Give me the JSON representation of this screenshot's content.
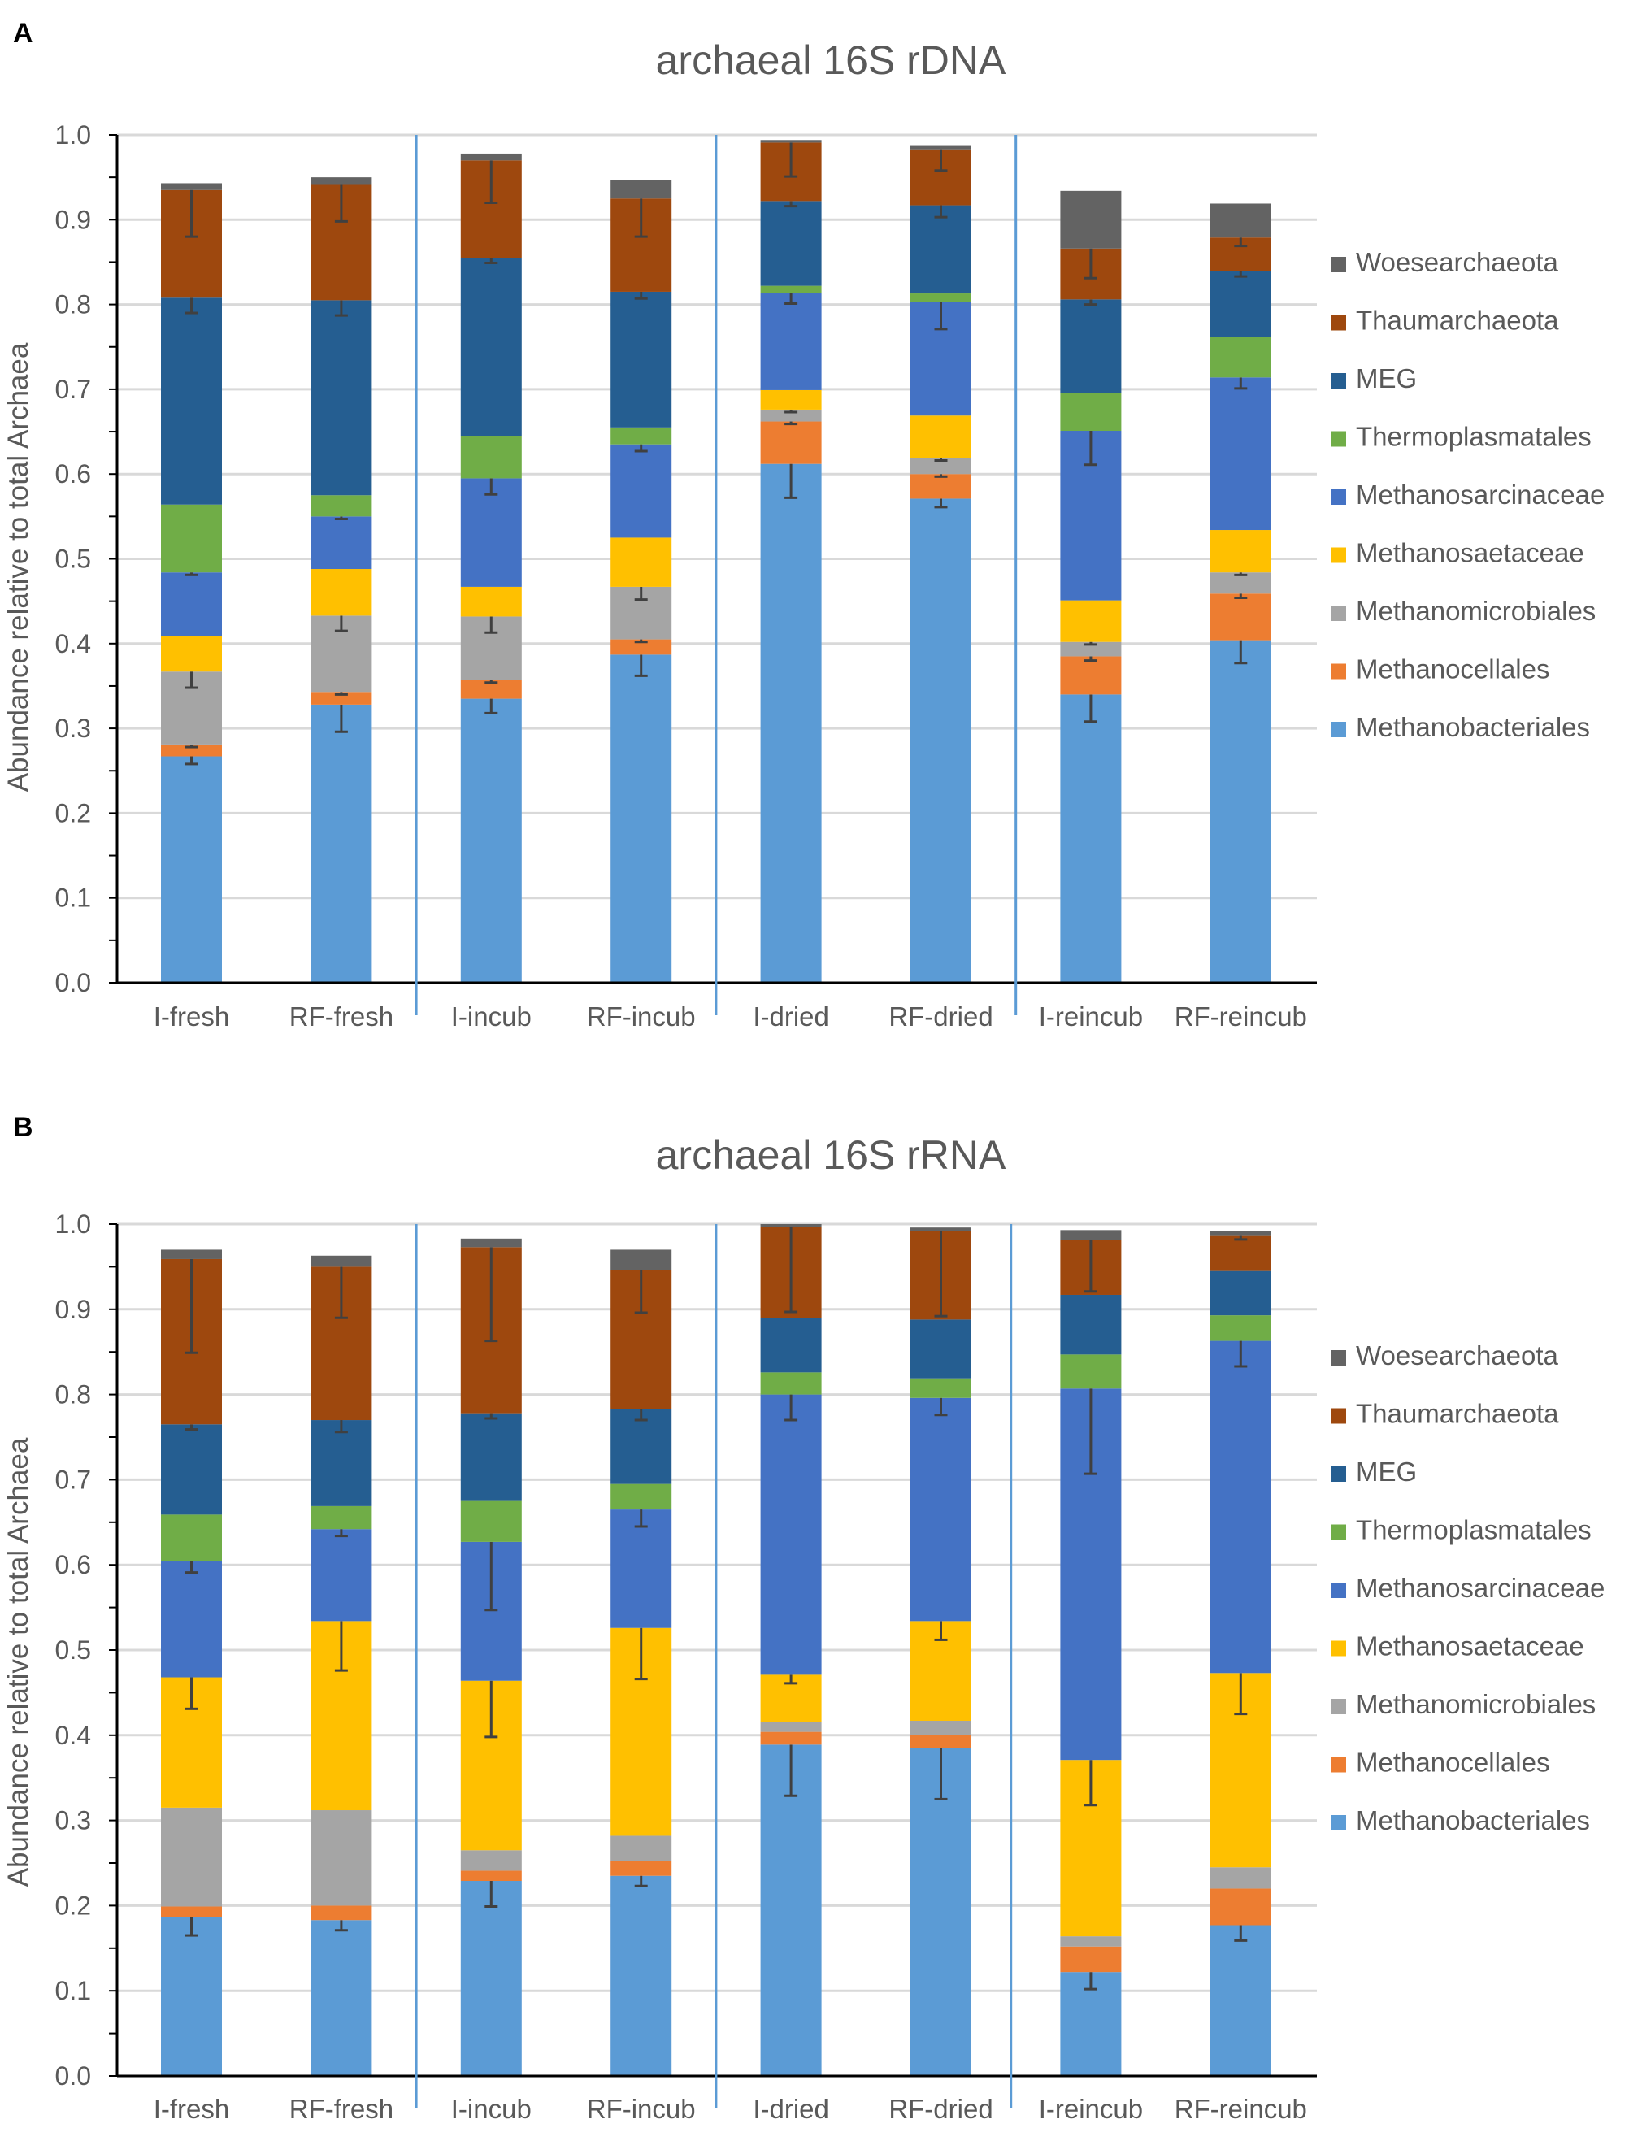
{
  "legend": [
    "Woesearchaeota",
    "Thaumarchaeota",
    "MEG",
    "Thermoplasmatales",
    "Methanosarcinaceae",
    "Methanosaetaceae",
    "Methanomicrobiales",
    "Methanocellales",
    "Methanobacteriales"
  ],
  "colors": {
    "Methanobacteriales": "#5B9BD5",
    "Methanocellales": "#ED7D31",
    "Methanomicrobiales": "#A5A5A5",
    "Methanosaetaceae": "#FFC000",
    "Methanosarcinaceae": "#4472C4",
    "Thermoplasmatales": "#70AD47",
    "MEG": "#255E91",
    "Thaumarchaeota": "#9E480E",
    "Woesearchaeota": "#636363"
  },
  "chart_data": [
    {
      "panel_label": "A",
      "type": "bar",
      "stacked": true,
      "title": "archaeal 16S rDNA",
      "xlabel": "",
      "ylabel": "Abundance relative to total Archaea",
      "ylim": [
        0,
        1.0
      ],
      "yticks": [
        "0.0",
        "0.1",
        "0.2",
        "0.3",
        "0.4",
        "0.5",
        "0.6",
        "0.7",
        "0.8",
        "0.9",
        "1.0"
      ],
      "categories": [
        "I-fresh",
        "RF-fresh",
        "I-incub",
        "RF-incub",
        "I-dried",
        "RF-dried",
        "I-reincub",
        "RF-reincub"
      ],
      "group_separators_after": [
        1,
        3,
        5
      ],
      "series": [
        {
          "name": "Methanobacteriales",
          "values": [
            0.267,
            0.328,
            0.335,
            0.387,
            0.612,
            0.571,
            0.34,
            0.404
          ],
          "err": [
            0.009,
            0.032,
            0.017,
            0.025,
            0.04,
            0.01,
            0.032,
            0.027
          ]
        },
        {
          "name": "Methanocellales",
          "values": [
            0.014,
            0.015,
            0.022,
            0.018,
            0.05,
            0.029,
            0.045,
            0.055
          ],
          "err": [
            0.003,
            0.003,
            0.003,
            0.003,
            0.003,
            0.003,
            0.005,
            0.005
          ]
        },
        {
          "name": "Methanomicrobiales",
          "values": [
            0.086,
            0.09,
            0.075,
            0.062,
            0.014,
            0.019,
            0.017,
            0.025
          ],
          "err": [
            0.019,
            0.018,
            0.019,
            0.015,
            0.003,
            0.003,
            0.003,
            0.003
          ]
        },
        {
          "name": "Methanosaetaceae",
          "values": [
            0.042,
            0.055,
            0.035,
            0.058,
            0.023,
            0.05,
            0.049,
            0.05
          ],
          "err": [
            0,
            0,
            0,
            0,
            0,
            0,
            0,
            0
          ]
        },
        {
          "name": "Methanosarcinaceae",
          "values": [
            0.075,
            0.062,
            0.128,
            0.11,
            0.115,
            0.134,
            0.2,
            0.18
          ],
          "err": [
            0.003,
            0.003,
            0.019,
            0.008,
            0.013,
            0.032,
            0.04,
            0.013
          ]
        },
        {
          "name": "Thermoplasmatales",
          "values": [
            0.08,
            0.025,
            0.05,
            0.02,
            0.008,
            0.01,
            0.045,
            0.048
          ],
          "err": [
            0,
            0,
            0,
            0,
            0,
            0,
            0,
            0
          ]
        },
        {
          "name": "MEG",
          "values": [
            0.244,
            0.23,
            0.21,
            0.16,
            0.1,
            0.104,
            0.11,
            0.077
          ],
          "err": [
            0.018,
            0.018,
            0.006,
            0.008,
            0.006,
            0.014,
            0.006,
            0.006
          ]
        },
        {
          "name": "Thaumarchaeota",
          "values": [
            0.127,
            0.137,
            0.115,
            0.11,
            0.069,
            0.066,
            0.06,
            0.04
          ],
          "err": [
            0.055,
            0.044,
            0.05,
            0.045,
            0.04,
            0.025,
            0.035,
            0.01
          ]
        },
        {
          "name": "Woesearchaeota",
          "values": [
            0.008,
            0.008,
            0.008,
            0.022,
            0.003,
            0.004,
            0.068,
            0.04
          ],
          "err": [
            0,
            0,
            0,
            0,
            0,
            0,
            0,
            0
          ]
        }
      ]
    },
    {
      "panel_label": "B",
      "type": "bar",
      "stacked": true,
      "title": "archaeal 16S rRNA",
      "xlabel": "",
      "ylabel": "Abundance relative to total Archaea",
      "ylim": [
        0,
        1.0
      ],
      "yticks": [
        "0.0",
        "0.1",
        "0.2",
        "0.3",
        "0.4",
        "0.5",
        "0.6",
        "0.7",
        "0.8",
        "0.9",
        "1.0"
      ],
      "categories": [
        "I-fresh",
        "RF-fresh",
        "I-incub",
        "RF-incub",
        "I-dried",
        "RF-dried",
        "I-reincub",
        "RF-reincub"
      ],
      "group_separators_after": [
        1,
        3,
        5
      ],
      "series": [
        {
          "name": "Methanobacteriales",
          "values": [
            0.187,
            0.183,
            0.229,
            0.235,
            0.389,
            0.385,
            0.122,
            0.177
          ],
          "err": [
            0.022,
            0.012,
            0.03,
            0.012,
            0.06,
            0.06,
            0.02,
            0.018
          ]
        },
        {
          "name": "Methanocellales",
          "values": [
            0.012,
            0.017,
            0.012,
            0.017,
            0.015,
            0.015,
            0.03,
            0.043
          ],
          "err": [
            0,
            0,
            0,
            0,
            0,
            0,
            0,
            0
          ]
        },
        {
          "name": "Methanomicrobiales",
          "values": [
            0.116,
            0.112,
            0.024,
            0.03,
            0.012,
            0.017,
            0.012,
            0.025
          ],
          "err": [
            0,
            0,
            0,
            0,
            0,
            0,
            0,
            0
          ]
        },
        {
          "name": "Methanosaetaceae",
          "values": [
            0.153,
            0.222,
            0.199,
            0.244,
            0.055,
            0.117,
            0.207,
            0.228
          ],
          "err": [
            0.037,
            0.058,
            0.066,
            0.06,
            0.01,
            0.022,
            0.053,
            0.048
          ]
        },
        {
          "name": "Methanosarcinaceae",
          "values": [
            0.136,
            0.108,
            0.163,
            0.139,
            0.329,
            0.262,
            0.436,
            0.39
          ],
          "err": [
            0.013,
            0.008,
            0.08,
            0.02,
            0.03,
            0.02,
            0.1,
            0.03
          ]
        },
        {
          "name": "Thermoplasmatales",
          "values": [
            0.055,
            0.027,
            0.048,
            0.03,
            0.026,
            0.023,
            0.04,
            0.03
          ],
          "err": [
            0,
            0,
            0,
            0,
            0,
            0,
            0,
            0
          ]
        },
        {
          "name": "MEG",
          "values": [
            0.106,
            0.101,
            0.103,
            0.088,
            0.064,
            0.069,
            0.07,
            0.052
          ],
          "err": [
            0.006,
            0.014,
            0.006,
            0.013,
            0,
            0,
            0,
            0
          ]
        },
        {
          "name": "Thaumarchaeota",
          "values": [
            0.194,
            0.18,
            0.195,
            0.163,
            0.107,
            0.104,
            0.064,
            0.042
          ],
          "err": [
            0.11,
            0.06,
            0.11,
            0.05,
            0.1,
            0.1,
            0.06,
            0.005
          ]
        },
        {
          "name": "Woesearchaeota",
          "values": [
            0.011,
            0.013,
            0.01,
            0.024,
            0.003,
            0.004,
            0.012,
            0.005
          ],
          "err": [
            0,
            0,
            0,
            0,
            0,
            0,
            0,
            0
          ]
        }
      ]
    }
  ]
}
